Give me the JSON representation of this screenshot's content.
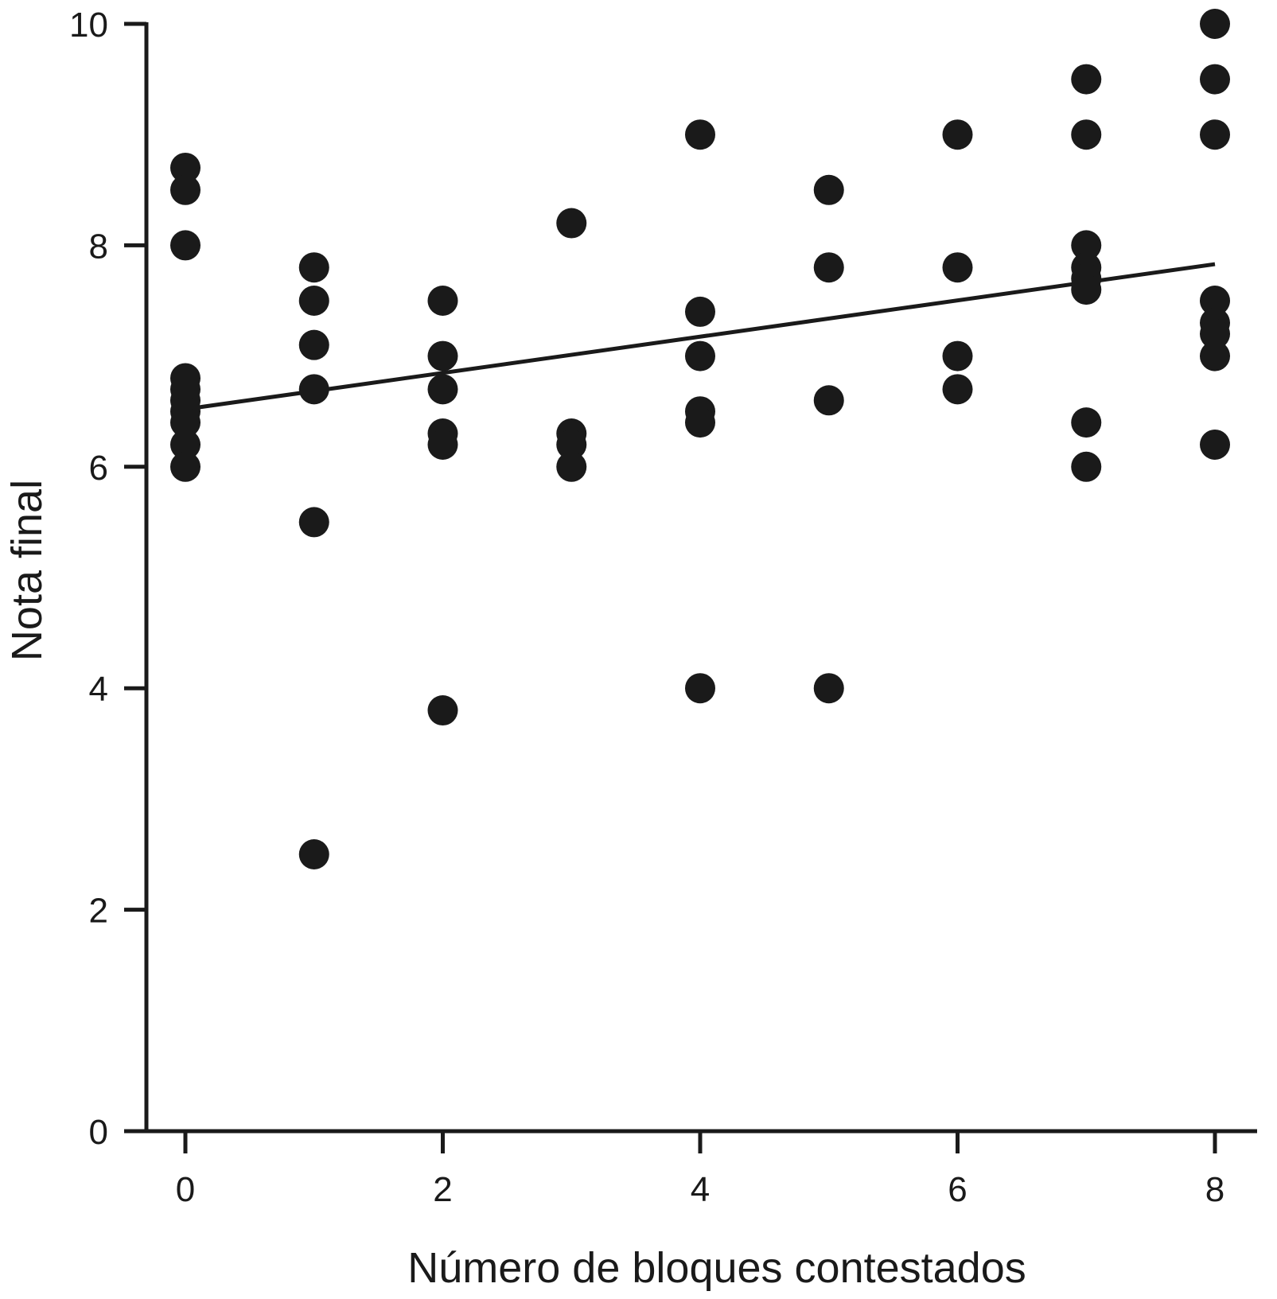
{
  "chart_data": {
    "type": "scatter",
    "title": "",
    "xlabel": "Número de bloques contestados",
    "ylabel": "Nota final",
    "xlim": [
      -0.3,
      8.3
    ],
    "ylim": [
      0,
      10
    ],
    "xticks": [
      0,
      2,
      4,
      6,
      8
    ],
    "xtick_labels": [
      "0",
      "2",
      "4",
      "6",
      "8"
    ],
    "yticks": [
      0,
      2,
      4,
      6,
      8,
      10
    ],
    "ytick_labels": [
      "0",
      "2",
      "4",
      "6",
      "8",
      "10"
    ],
    "grid": false,
    "legend": "none",
    "marker_color": "#1a1a1a",
    "points": [
      {
        "x": 0,
        "y": 8.7
      },
      {
        "x": 0,
        "y": 8.5
      },
      {
        "x": 0,
        "y": 8.0
      },
      {
        "x": 0,
        "y": 6.8
      },
      {
        "x": 0,
        "y": 6.7
      },
      {
        "x": 0,
        "y": 6.6
      },
      {
        "x": 0,
        "y": 6.5
      },
      {
        "x": 0,
        "y": 6.4
      },
      {
        "x": 0,
        "y": 6.2
      },
      {
        "x": 0,
        "y": 6.0
      },
      {
        "x": 1,
        "y": 7.8
      },
      {
        "x": 1,
        "y": 7.5
      },
      {
        "x": 1,
        "y": 7.1
      },
      {
        "x": 1,
        "y": 6.7
      },
      {
        "x": 1,
        "y": 5.5
      },
      {
        "x": 1,
        "y": 2.5
      },
      {
        "x": 2,
        "y": 7.5
      },
      {
        "x": 2,
        "y": 7.0
      },
      {
        "x": 2,
        "y": 6.7
      },
      {
        "x": 2,
        "y": 6.3
      },
      {
        "x": 2,
        "y": 6.2
      },
      {
        "x": 2,
        "y": 3.8
      },
      {
        "x": 3,
        "y": 8.2
      },
      {
        "x": 3,
        "y": 6.3
      },
      {
        "x": 3,
        "y": 6.2
      },
      {
        "x": 3,
        "y": 6.0
      },
      {
        "x": 4,
        "y": 9.0
      },
      {
        "x": 4,
        "y": 7.4
      },
      {
        "x": 4,
        "y": 7.0
      },
      {
        "x": 4,
        "y": 6.5
      },
      {
        "x": 4,
        "y": 6.4
      },
      {
        "x": 4,
        "y": 4.0
      },
      {
        "x": 5,
        "y": 8.5
      },
      {
        "x": 5,
        "y": 7.8
      },
      {
        "x": 5,
        "y": 6.6
      },
      {
        "x": 5,
        "y": 4.0
      },
      {
        "x": 6,
        "y": 9.0
      },
      {
        "x": 6,
        "y": 7.8
      },
      {
        "x": 6,
        "y": 7.0
      },
      {
        "x": 6,
        "y": 6.7
      },
      {
        "x": 7,
        "y": 9.5
      },
      {
        "x": 7,
        "y": 9.0
      },
      {
        "x": 7,
        "y": 8.0
      },
      {
        "x": 7,
        "y": 7.8
      },
      {
        "x": 7,
        "y": 7.7
      },
      {
        "x": 7,
        "y": 7.6
      },
      {
        "x": 7,
        "y": 6.4
      },
      {
        "x": 7,
        "y": 6.0
      },
      {
        "x": 8,
        "y": 10.0
      },
      {
        "x": 8,
        "y": 9.5
      },
      {
        "x": 8,
        "y": 9.0
      },
      {
        "x": 8,
        "y": 7.5
      },
      {
        "x": 8,
        "y": 7.3
      },
      {
        "x": 8,
        "y": 7.2
      },
      {
        "x": 8,
        "y": 7.0
      },
      {
        "x": 8,
        "y": 6.2
      }
    ],
    "trendline": {
      "x": [
        0,
        8
      ],
      "y": [
        6.52,
        7.83
      ]
    }
  }
}
